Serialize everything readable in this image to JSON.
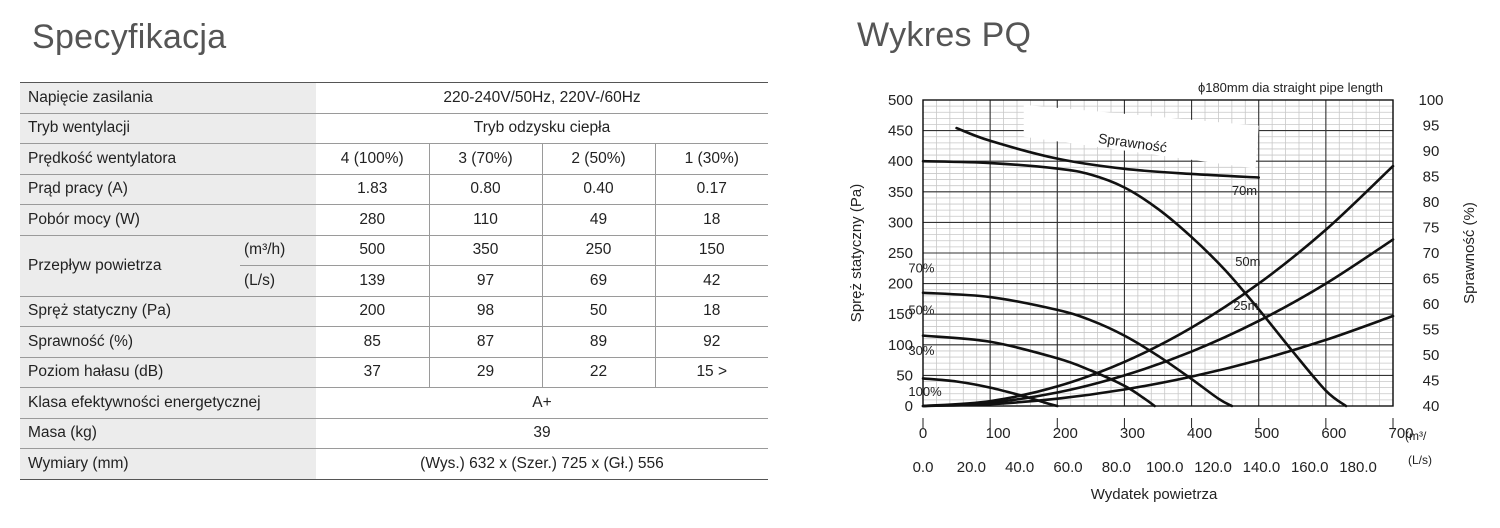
{
  "spec": {
    "title": "Specyfikacja",
    "rows": {
      "napiecie": {
        "label": "Napięcie zasilania",
        "value": "220-240V/50Hz, 220V-/60Hz"
      },
      "tryb": {
        "label": "Tryb wentylacji",
        "value": "Tryb odzysku ciepła"
      },
      "predkosc": {
        "label": "Prędkość wentylatora",
        "values": [
          "4 (100%)",
          "3 (70%)",
          "2 (50%)",
          "1 (30%)"
        ]
      },
      "prad": {
        "label": "Prąd pracy (A)",
        "values": [
          "1.83",
          "0.80",
          "0.40",
          "0.17"
        ]
      },
      "pobor": {
        "label": "Pobór mocy (W)",
        "values": [
          "280",
          "110",
          "49",
          "18"
        ]
      },
      "przeplyw": {
        "label": "Przepływ powietrza",
        "unit_m3h": "(m³/h)",
        "values_m3h": [
          "500",
          "350",
          "250",
          "150"
        ],
        "unit_ls": "(L/s)",
        "values_ls": [
          "139",
          "97",
          "69",
          "42"
        ]
      },
      "spreaz": {
        "label": "Spręż statyczny (Pa)",
        "values": [
          "200",
          "98",
          "50",
          "18"
        ]
      },
      "sprawnosc": {
        "label": "Sprawność (%)",
        "values": [
          "85",
          "87",
          "89",
          "92"
        ]
      },
      "halas": {
        "label": "Poziom hałasu (dB)",
        "values": [
          "37",
          "29",
          "22",
          "15 >"
        ]
      },
      "klasa": {
        "label": "Klasa efektywności energetycznej",
        "value": "A+"
      },
      "masa": {
        "label": "Masa (kg)",
        "value": "39"
      },
      "wymiary": {
        "label": "Wymiary (mm)",
        "value": "(Wys.) 632 x (Szer.) 725 x (Gł.) 556"
      }
    }
  },
  "chart_title": "Wykres PQ",
  "chart_data": {
    "type": "line",
    "title": "",
    "header_note": "ϕ180mm dia straight pipe length",
    "xlabel": "Wydatek powietrza",
    "ylabel": "Spręż statyczny (Pa)",
    "y2label": "Sprawność (%)",
    "xlim": [
      0,
      700
    ],
    "ylim": [
      0,
      500
    ],
    "y2lim": [
      40,
      100
    ],
    "x_ticks": [
      0,
      100,
      200,
      300,
      400,
      500,
      600,
      700
    ],
    "x_ticks_labels": [
      "0",
      "100",
      "200",
      "300",
      "400",
      "500",
      "600",
      "700"
    ],
    "x_unit": "(m³/",
    "x2_ticks_labels": [
      "0.0",
      "20.0",
      "40.0",
      "60.0",
      "80.0",
      "100.0",
      "120.0",
      "140.0",
      "160.0",
      "180.0"
    ],
    "x2_unit": "(L/s)",
    "y_ticks": [
      0,
      50,
      100,
      150,
      200,
      250,
      300,
      350,
      400,
      450,
      500
    ],
    "y_ticks_labels": [
      "0",
      "50",
      "100",
      "150",
      "200",
      "250",
      "300",
      "350",
      "400",
      "450",
      "500"
    ],
    "y2_ticks_labels": [
      "40",
      "45",
      "50",
      "55",
      "60",
      "65",
      "70",
      "75",
      "80",
      "85",
      "90",
      "95",
      "100"
    ],
    "grid": true,
    "series": [
      {
        "name": "100%",
        "axis": "left",
        "x": [
          0,
          100,
          200,
          250,
          300,
          350,
          400,
          450,
          500,
          550,
          600,
          630
        ],
        "y": [
          400,
          397,
          388,
          378,
          357,
          322,
          276,
          222,
          158,
          90,
          25,
          0
        ]
      },
      {
        "name": "70%",
        "axis": "left",
        "x": [
          0,
          100,
          200,
          250,
          300,
          350,
          400,
          440,
          460
        ],
        "y": [
          185,
          178,
          157,
          140,
          115,
          82,
          44,
          12,
          0
        ]
      },
      {
        "name": "50%",
        "axis": "left",
        "x": [
          0,
          100,
          200,
          250,
          300,
          330,
          345
        ],
        "y": [
          115,
          105,
          78,
          58,
          33,
          12,
          0
        ]
      },
      {
        "name": "30%",
        "axis": "left",
        "x": [
          0,
          50,
          100,
          150,
          180,
          200
        ],
        "y": [
          45,
          40,
          30,
          16,
          6,
          0
        ]
      },
      {
        "name": "70m",
        "axis": "left",
        "x": [
          0,
          100,
          200,
          300,
          400,
          500,
          600,
          700
        ],
        "y": [
          0,
          8,
          32,
          72,
          128,
          200,
          288,
          392
        ]
      },
      {
        "name": "50m",
        "axis": "left",
        "x": [
          0,
          100,
          200,
          300,
          400,
          500,
          600,
          700
        ],
        "y": [
          0,
          5.5,
          22,
          50,
          89,
          139,
          200,
          272
        ]
      },
      {
        "name": "25m",
        "axis": "left",
        "x": [
          0,
          100,
          200,
          300,
          400,
          500,
          600,
          700
        ],
        "y": [
          0,
          3,
          12,
          27,
          48,
          75,
          108,
          147
        ]
      },
      {
        "name": "Sprawność",
        "axis": "right",
        "x": [
          50,
          100,
          200,
          300,
          400,
          500
        ],
        "y": [
          94.5,
          92,
          88.5,
          86.5,
          85.5,
          84.8
        ]
      }
    ]
  }
}
